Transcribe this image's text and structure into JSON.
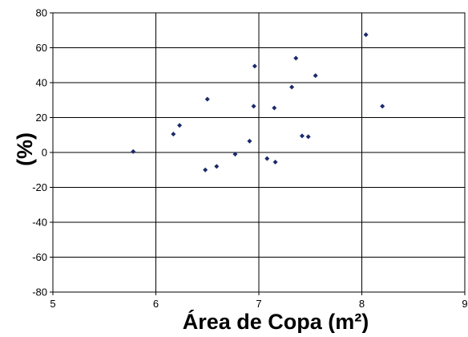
{
  "chart_data": {
    "type": "scatter",
    "title": "",
    "xlabel": "Área de Copa (m²)",
    "ylabel": "(%)",
    "xlim": [
      5,
      9
    ],
    "ylim": [
      -80,
      80
    ],
    "x_ticks": [
      5,
      6,
      7,
      8,
      9
    ],
    "y_ticks": [
      -80,
      -60,
      -40,
      -20,
      0,
      20,
      40,
      60,
      80
    ],
    "x_tick_labels": [
      "5",
      "6",
      "7",
      "8",
      "9"
    ],
    "y_tick_labels": [
      "-80",
      "-60",
      "-40",
      "-20",
      "0",
      "20",
      "40",
      "60",
      "80"
    ],
    "grid": true,
    "legend": "none",
    "marker": "diamond",
    "colors": {
      "point": "#1a2a6b",
      "grid": "#000000",
      "frame": "#000000"
    },
    "series": [
      {
        "points": [
          {
            "x": 5.78,
            "y": 0.5
          },
          {
            "x": 6.17,
            "y": 10.5
          },
          {
            "x": 6.23,
            "y": 15.5
          },
          {
            "x": 6.48,
            "y": -10.0
          },
          {
            "x": 6.5,
            "y": 30.5
          },
          {
            "x": 6.59,
            "y": -8.0
          },
          {
            "x": 6.77,
            "y": -1.0
          },
          {
            "x": 6.91,
            "y": 6.5
          },
          {
            "x": 6.95,
            "y": 26.5
          },
          {
            "x": 6.96,
            "y": 49.5
          },
          {
            "x": 7.08,
            "y": -3.5
          },
          {
            "x": 7.15,
            "y": 25.5
          },
          {
            "x": 7.16,
            "y": -5.5
          },
          {
            "x": 7.32,
            "y": 37.5
          },
          {
            "x": 7.36,
            "y": 54.0
          },
          {
            "x": 7.42,
            "y": 9.5
          },
          {
            "x": 7.48,
            "y": 9.0
          },
          {
            "x": 7.55,
            "y": 44.0
          },
          {
            "x": 8.04,
            "y": 67.5
          },
          {
            "x": 8.2,
            "y": 26.5
          }
        ]
      }
    ]
  }
}
